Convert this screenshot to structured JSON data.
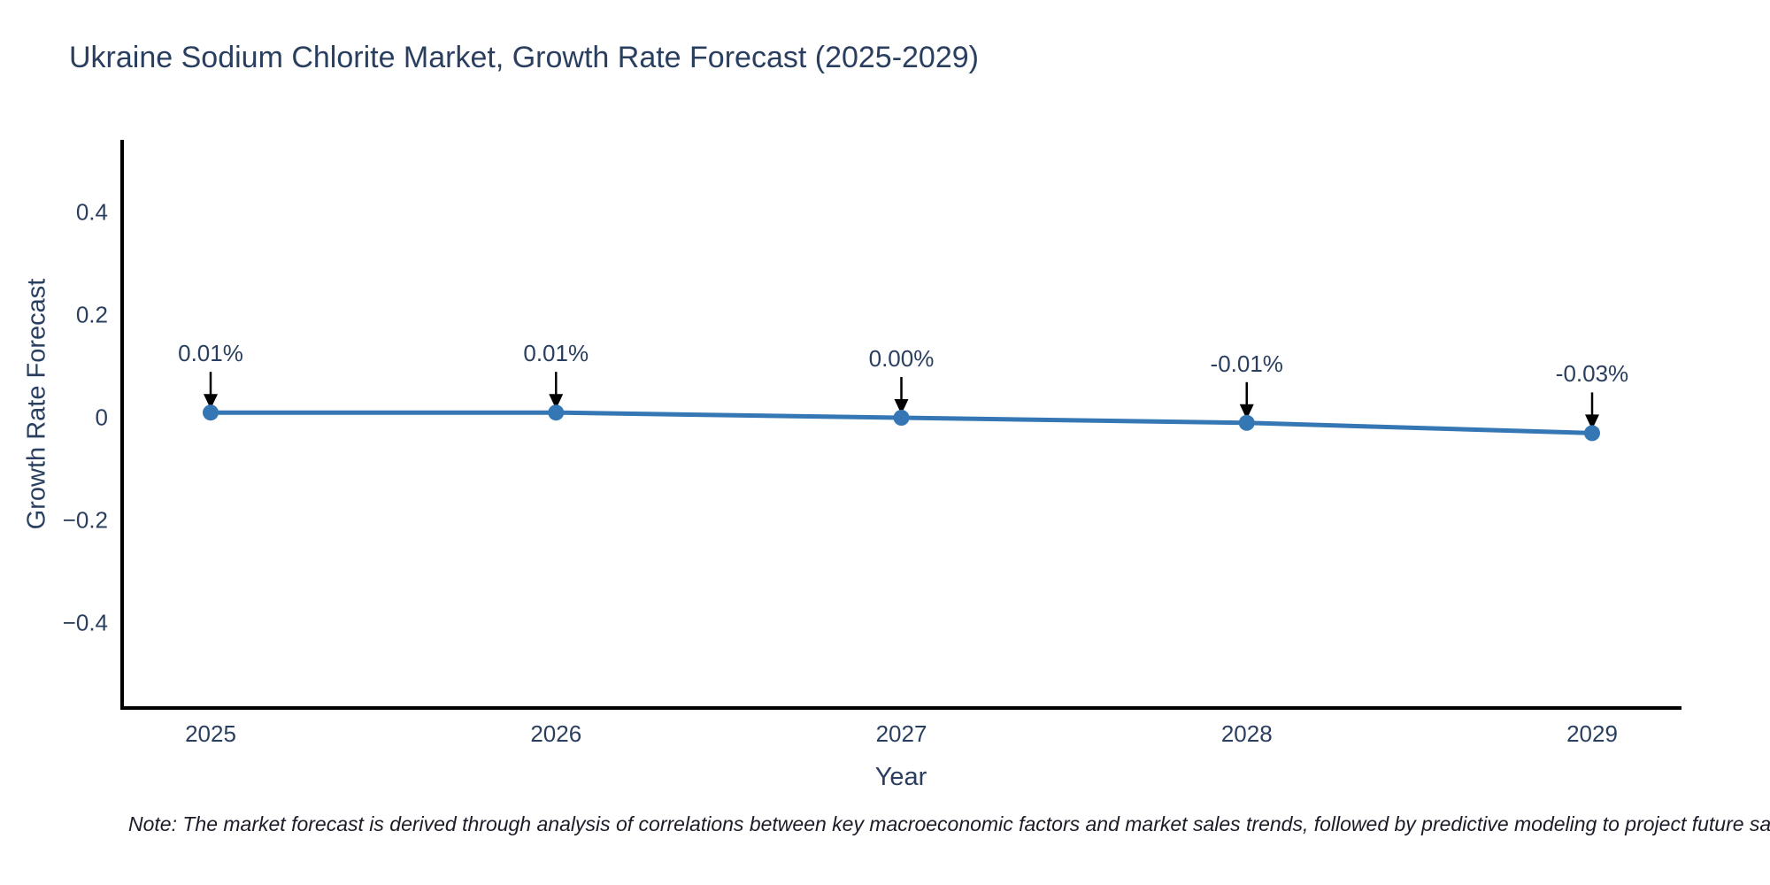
{
  "title": "Ukraine Sodium Chlorite Market, Growth Rate Forecast (2025-2029)",
  "note": "Note: The market forecast is derived through analysis of correlations between key macroeconomic factors and market sales trends, followed by predictive modeling to project future sales.",
  "colors": {
    "background": "#ffffff",
    "line": "#3477b4",
    "marker": "#3477b4",
    "axis_line": "#000000",
    "text": "#2a3f5f",
    "arrow": "#000000",
    "note_text": "#1c1c28"
  },
  "chart_data": {
    "type": "line",
    "title": "Ukraine Sodium Chlorite Market, Growth Rate Forecast (2025-2029)",
    "xlabel": "Year",
    "ylabel": "Growth Rate Forecast",
    "x": [
      2025,
      2026,
      2027,
      2028,
      2029
    ],
    "y": [
      0.01,
      0.01,
      0.0,
      -0.01,
      -0.03
    ],
    "point_labels": [
      "0.01%",
      "0.01%",
      "0.00%",
      "-0.01%",
      "-0.03%"
    ],
    "xtick_labels": [
      "2025",
      "2026",
      "2027",
      "2028",
      "2029"
    ],
    "ytick_values": [
      0.4,
      0.2,
      0,
      -0.2,
      -0.4
    ],
    "ytick_labels": [
      "0.4",
      "0.2",
      "0",
      "−0.2",
      "−0.4"
    ],
    "ylim": [
      -0.57,
      0.54
    ],
    "grid": false,
    "legend_position": "none",
    "marker_style": "circle",
    "annotation_arrows": "down"
  }
}
